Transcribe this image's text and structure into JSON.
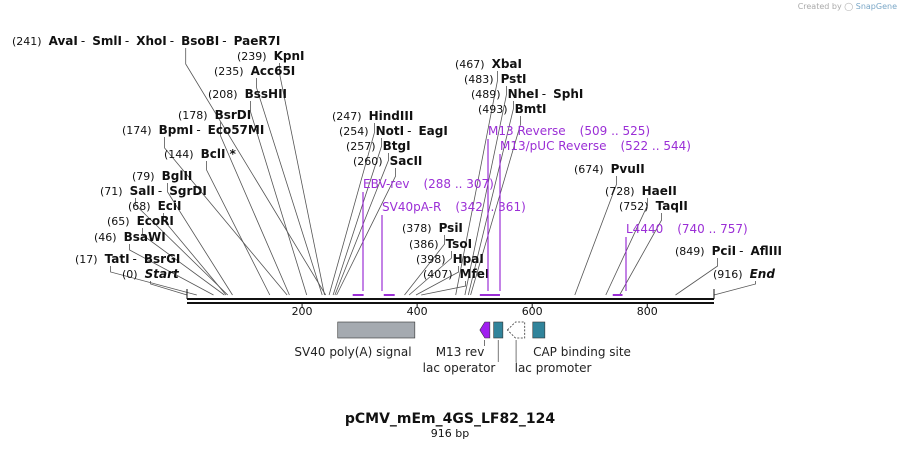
{
  "credit": {
    "prefix": "Created by",
    "brand": "SnapGene"
  },
  "plasmid": {
    "name": "pCMV_mEm_4GS_LF82_124",
    "length_label": "916 bp",
    "length": 916
  },
  "ticks": [
    {
      "pos": 200,
      "label": "200"
    },
    {
      "pos": 400,
      "label": "400"
    },
    {
      "pos": 600,
      "label": "600"
    },
    {
      "pos": 800,
      "label": "800"
    }
  ],
  "site_rows": [
    {
      "id": "row-avai",
      "pos_label": "(241)",
      "names": [
        "AvaI",
        "SmlI",
        "XhoI",
        "BsoBI",
        "PaeR7I"
      ],
      "site": 241
    },
    {
      "id": "row-kpni",
      "pos_label": "(239)",
      "names": [
        "KpnI"
      ],
      "site": 239
    },
    {
      "id": "row-acc65i",
      "pos_label": "(235)",
      "names": [
        "Acc65I"
      ],
      "site": 235
    },
    {
      "id": "row-bsshii",
      "pos_label": "(208)",
      "names": [
        "BssHII"
      ],
      "site": 208
    },
    {
      "id": "row-bsrdi",
      "pos_label": "(178)",
      "names": [
        "BsrDI"
      ],
      "site": 178
    },
    {
      "id": "row-bpmi",
      "pos_label": "(174)",
      "names": [
        "BpmI",
        "Eco57MI"
      ],
      "site": 174
    },
    {
      "id": "row-bcli",
      "pos_label": "(144)",
      "names": [
        "BclI *"
      ],
      "site": 144
    },
    {
      "id": "row-bglii",
      "pos_label": "(79)",
      "names": [
        "BglII"
      ],
      "site": 79
    },
    {
      "id": "row-sali",
      "pos_label": "(71)",
      "names": [
        "SalI",
        "SgrDI"
      ],
      "site": 71
    },
    {
      "id": "row-ecii",
      "pos_label": "(68)",
      "names": [
        "EciI"
      ],
      "site": 68
    },
    {
      "id": "row-ecori",
      "pos_label": "(65)",
      "names": [
        "EcoRI"
      ],
      "site": 65
    },
    {
      "id": "row-bsawi",
      "pos_label": "(46)",
      "names": [
        "BsaWI"
      ],
      "site": 46
    },
    {
      "id": "row-tati",
      "pos_label": "(17)",
      "names": [
        "TatI",
        "BsrGI"
      ],
      "site": 17
    },
    {
      "id": "row-start",
      "pos_label": "(0)",
      "names": [
        "Start"
      ],
      "site": 0,
      "italic": true
    },
    {
      "id": "row-hindiii",
      "pos_label": "(247)",
      "names": [
        "HindIII"
      ],
      "site": 247
    },
    {
      "id": "row-noti",
      "pos_label": "(254)",
      "names": [
        "NotI",
        "EagI"
      ],
      "site": 254
    },
    {
      "id": "row-btgi",
      "pos_label": "(257)",
      "names": [
        "BtgI"
      ],
      "site": 257
    },
    {
      "id": "row-sacii",
      "pos_label": "(260)",
      "names": [
        "SacII"
      ],
      "site": 260
    },
    {
      "id": "row-xbai",
      "pos_label": "(467)",
      "names": [
        "XbaI"
      ],
      "site": 467
    },
    {
      "id": "row-psti",
      "pos_label": "(483)",
      "names": [
        "PstI"
      ],
      "site": 483
    },
    {
      "id": "row-nhei",
      "pos_label": "(489)",
      "names": [
        "NheI",
        "SphI"
      ],
      "site": 489
    },
    {
      "id": "row-bmti",
      "pos_label": "(493)",
      "names": [
        "BmtI"
      ],
      "site": 493
    },
    {
      "id": "row-psii",
      "pos_label": "(378)",
      "names": [
        "PsiI"
      ],
      "site": 378
    },
    {
      "id": "row-tsoi",
      "pos_label": "(386)",
      "names": [
        "TsoI"
      ],
      "site": 386
    },
    {
      "id": "row-hpai",
      "pos_label": "(398)",
      "names": [
        "HpaI"
      ],
      "site": 398
    },
    {
      "id": "row-mfei",
      "pos_label": "(407)",
      "names": [
        "MfeI"
      ],
      "site": 407
    },
    {
      "id": "row-pvuii",
      "pos_label": "(674)",
      "names": [
        "PvuII"
      ],
      "site": 674
    },
    {
      "id": "row-haeii",
      "pos_label": "(728)",
      "names": [
        "HaeII"
      ],
      "site": 728
    },
    {
      "id": "row-taqii",
      "pos_label": "(752)",
      "names": [
        "TaqII"
      ],
      "site": 752
    },
    {
      "id": "row-pcii",
      "pos_label": "(849)",
      "names": [
        "PciI",
        "AflIII"
      ],
      "site": 849
    },
    {
      "id": "row-end",
      "pos_label": "(916)",
      "names": [
        "End"
      ],
      "site": 916,
      "italic": true
    }
  ],
  "primers": [
    {
      "id": "primer-m13-reverse",
      "name": "M13 Reverse",
      "range": "(509 .. 525)",
      "start": 509,
      "end": 525
    },
    {
      "id": "primer-m13-puc-reverse",
      "name": "M13/pUC Reverse",
      "range": "(522 .. 544)",
      "start": 522,
      "end": 544
    },
    {
      "id": "primer-ebv-rev",
      "name": "EBV-rev",
      "range": "(288 .. 307)",
      "start": 288,
      "end": 307
    },
    {
      "id": "primer-sv40pa-r",
      "name": "SV40pA-R",
      "range": "(342 .. 361)",
      "start": 342,
      "end": 361
    },
    {
      "id": "primer-l4440",
      "name": "L4440",
      "range": "(740 .. 757)",
      "start": 740,
      "end": 757
    }
  ],
  "features": [
    {
      "id": "feature-sv40-polya",
      "label": "SV40 poly(A) signal",
      "start": 262,
      "end": 396,
      "kind": "box",
      "color": "#a5aab0"
    },
    {
      "id": "feature-m13-rev",
      "label": "M13 rev",
      "start": 509,
      "end": 525,
      "kind": "arrow-left",
      "color": "#a020f0"
    },
    {
      "id": "feature-lac-operator",
      "label": "lac operator",
      "start": 533,
      "end": 549,
      "kind": "box",
      "color": "#31849b"
    },
    {
      "id": "feature-lac-promoter",
      "label": "lac promoter",
      "start": 557,
      "end": 587,
      "kind": "arrow-left-hollow",
      "color": "#ffffff"
    },
    {
      "id": "feature-cap-site",
      "label": "CAP binding site",
      "start": 601,
      "end": 622,
      "kind": "box",
      "color": "#31849b"
    }
  ],
  "colors": {
    "primer": "#9b2fd6",
    "feature_teal": "#31849b",
    "backbone": "#111111"
  }
}
